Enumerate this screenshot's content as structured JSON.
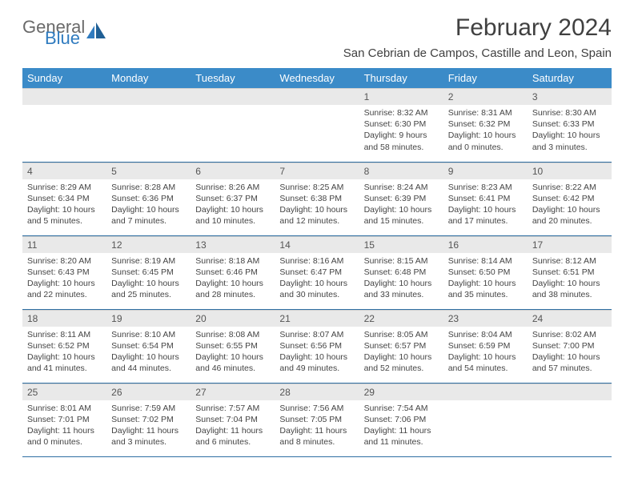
{
  "logo": {
    "text1": "General",
    "text2": "Blue",
    "accent": "#2f7bbf",
    "gray": "#6a6a6a"
  },
  "title": "February 2024",
  "location": "San Cebrian de Campos, Castille and Leon, Spain",
  "colors": {
    "header_bg": "#3b8bc8",
    "header_text": "#ffffff",
    "daynum_bg": "#e9e9e9",
    "rule": "#2f6fa3"
  },
  "weekdays": [
    "Sunday",
    "Monday",
    "Tuesday",
    "Wednesday",
    "Thursday",
    "Friday",
    "Saturday"
  ],
  "weeks": [
    [
      null,
      null,
      null,
      null,
      {
        "n": "1",
        "sr": "8:32 AM",
        "ss": "6:30 PM",
        "dl": "Daylight: 9 hours and 58 minutes."
      },
      {
        "n": "2",
        "sr": "8:31 AM",
        "ss": "6:32 PM",
        "dl": "Daylight: 10 hours and 0 minutes."
      },
      {
        "n": "3",
        "sr": "8:30 AM",
        "ss": "6:33 PM",
        "dl": "Daylight: 10 hours and 3 minutes."
      }
    ],
    [
      {
        "n": "4",
        "sr": "8:29 AM",
        "ss": "6:34 PM",
        "dl": "Daylight: 10 hours and 5 minutes."
      },
      {
        "n": "5",
        "sr": "8:28 AM",
        "ss": "6:36 PM",
        "dl": "Daylight: 10 hours and 7 minutes."
      },
      {
        "n": "6",
        "sr": "8:26 AM",
        "ss": "6:37 PM",
        "dl": "Daylight: 10 hours and 10 minutes."
      },
      {
        "n": "7",
        "sr": "8:25 AM",
        "ss": "6:38 PM",
        "dl": "Daylight: 10 hours and 12 minutes."
      },
      {
        "n": "8",
        "sr": "8:24 AM",
        "ss": "6:39 PM",
        "dl": "Daylight: 10 hours and 15 minutes."
      },
      {
        "n": "9",
        "sr": "8:23 AM",
        "ss": "6:41 PM",
        "dl": "Daylight: 10 hours and 17 minutes."
      },
      {
        "n": "10",
        "sr": "8:22 AM",
        "ss": "6:42 PM",
        "dl": "Daylight: 10 hours and 20 minutes."
      }
    ],
    [
      {
        "n": "11",
        "sr": "8:20 AM",
        "ss": "6:43 PM",
        "dl": "Daylight: 10 hours and 22 minutes."
      },
      {
        "n": "12",
        "sr": "8:19 AM",
        "ss": "6:45 PM",
        "dl": "Daylight: 10 hours and 25 minutes."
      },
      {
        "n": "13",
        "sr": "8:18 AM",
        "ss": "6:46 PM",
        "dl": "Daylight: 10 hours and 28 minutes."
      },
      {
        "n": "14",
        "sr": "8:16 AM",
        "ss": "6:47 PM",
        "dl": "Daylight: 10 hours and 30 minutes."
      },
      {
        "n": "15",
        "sr": "8:15 AM",
        "ss": "6:48 PM",
        "dl": "Daylight: 10 hours and 33 minutes."
      },
      {
        "n": "16",
        "sr": "8:14 AM",
        "ss": "6:50 PM",
        "dl": "Daylight: 10 hours and 35 minutes."
      },
      {
        "n": "17",
        "sr": "8:12 AM",
        "ss": "6:51 PM",
        "dl": "Daylight: 10 hours and 38 minutes."
      }
    ],
    [
      {
        "n": "18",
        "sr": "8:11 AM",
        "ss": "6:52 PM",
        "dl": "Daylight: 10 hours and 41 minutes."
      },
      {
        "n": "19",
        "sr": "8:10 AM",
        "ss": "6:54 PM",
        "dl": "Daylight: 10 hours and 44 minutes."
      },
      {
        "n": "20",
        "sr": "8:08 AM",
        "ss": "6:55 PM",
        "dl": "Daylight: 10 hours and 46 minutes."
      },
      {
        "n": "21",
        "sr": "8:07 AM",
        "ss": "6:56 PM",
        "dl": "Daylight: 10 hours and 49 minutes."
      },
      {
        "n": "22",
        "sr": "8:05 AM",
        "ss": "6:57 PM",
        "dl": "Daylight: 10 hours and 52 minutes."
      },
      {
        "n": "23",
        "sr": "8:04 AM",
        "ss": "6:59 PM",
        "dl": "Daylight: 10 hours and 54 minutes."
      },
      {
        "n": "24",
        "sr": "8:02 AM",
        "ss": "7:00 PM",
        "dl": "Daylight: 10 hours and 57 minutes."
      }
    ],
    [
      {
        "n": "25",
        "sr": "8:01 AM",
        "ss": "7:01 PM",
        "dl": "Daylight: 11 hours and 0 minutes."
      },
      {
        "n": "26",
        "sr": "7:59 AM",
        "ss": "7:02 PM",
        "dl": "Daylight: 11 hours and 3 minutes."
      },
      {
        "n": "27",
        "sr": "7:57 AM",
        "ss": "7:04 PM",
        "dl": "Daylight: 11 hours and 6 minutes."
      },
      {
        "n": "28",
        "sr": "7:56 AM",
        "ss": "7:05 PM",
        "dl": "Daylight: 11 hours and 8 minutes."
      },
      {
        "n": "29",
        "sr": "7:54 AM",
        "ss": "7:06 PM",
        "dl": "Daylight: 11 hours and 11 minutes."
      },
      null,
      null
    ]
  ],
  "labels": {
    "sunrise": "Sunrise: ",
    "sunset": "Sunset: "
  }
}
